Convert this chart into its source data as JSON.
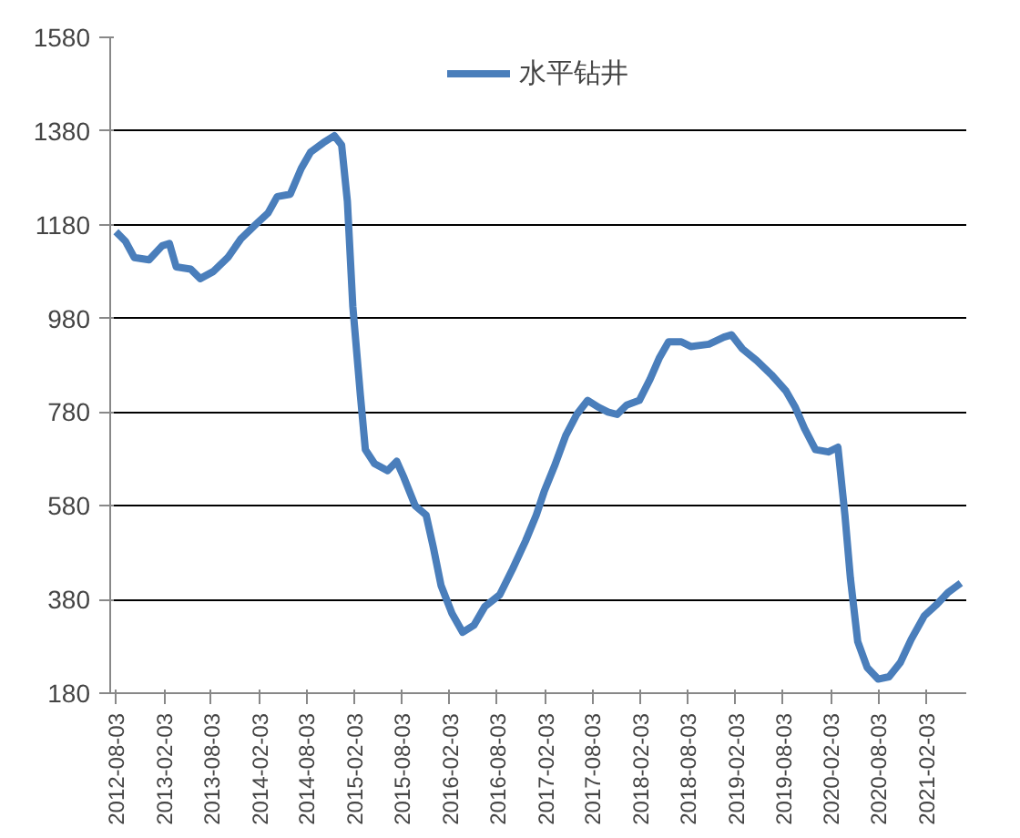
{
  "chart_data": {
    "type": "line",
    "legend": "top",
    "grid": "y",
    "marker": "none",
    "line_style": "solid",
    "xlim": [
      "2012-07-12",
      "2021-07-06"
    ],
    "ylim": [
      180,
      1580
    ],
    "yticks": [
      180,
      380,
      580,
      780,
      980,
      1180,
      1380,
      1580
    ],
    "xticks": [
      "2012-08-03",
      "2013-02-03",
      "2013-08-03",
      "2014-02-03",
      "2014-08-03",
      "2015-02-03",
      "2015-08-03",
      "2016-02-03",
      "2016-08-03",
      "2017-02-03",
      "2017-08-03",
      "2018-02-03",
      "2018-08-03",
      "2019-02-03",
      "2019-08-03",
      "2020-02-03",
      "2020-08-03",
      "2021-02-03"
    ],
    "series": [
      {
        "name": "水平钻井",
        "color": "#4a7ebb",
        "x": [
          "2012-08-03",
          "2012-09-08",
          "2012-10-12",
          "2012-12-08",
          "2013-01-27",
          "2013-02-24",
          "2013-03-22",
          "2013-05-17",
          "2013-06-22",
          "2013-08-11",
          "2013-10-06",
          "2013-11-25",
          "2014-01-20",
          "2014-03-09",
          "2014-04-13",
          "2014-06-02",
          "2014-07-14",
          "2014-08-19",
          "2014-10-07",
          "2014-11-18",
          "2014-12-16",
          "2015-01-07",
          "2015-01-28",
          "2015-02-26",
          "2015-03-17",
          "2015-04-21",
          "2015-06-10",
          "2015-07-15",
          "2015-08-12",
          "2015-09-24",
          "2015-11-05",
          "2015-12-03",
          "2016-01-01",
          "2016-02-12",
          "2016-03-24",
          "2016-05-06",
          "2016-06-17",
          "2016-08-13",
          "2016-10-01",
          "2016-11-20",
          "2016-12-31",
          "2017-01-30",
          "2017-03-11",
          "2017-04-23",
          "2017-06-04",
          "2017-07-16",
          "2017-08-28",
          "2017-10-02",
          "2017-11-06",
          "2017-12-12",
          "2018-01-30",
          "2018-03-12",
          "2018-04-16",
          "2018-05-22",
          "2018-07-10",
          "2018-08-15",
          "2018-10-24",
          "2018-12-20",
          "2019-01-18",
          "2019-03-01",
          "2019-04-25",
          "2019-06-20",
          "2019-08-15",
          "2019-09-20",
          "2019-10-25",
          "2019-12-06",
          "2020-01-25",
          "2020-03-01",
          "2020-03-28",
          "2020-04-18",
          "2020-05-16",
          "2020-06-21",
          "2020-08-02",
          "2020-09-13",
          "2020-10-26",
          "2020-12-07",
          "2021-01-26",
          "2021-03-16",
          "2021-04-27",
          "2021-06-15"
        ],
        "values": [
          1165,
          1145,
          1110,
          1105,
          1135,
          1140,
          1090,
          1085,
          1065,
          1080,
          1110,
          1150,
          1180,
          1205,
          1240,
          1245,
          1300,
          1335,
          1355,
          1370,
          1350,
          1230,
          1005,
          815,
          700,
          670,
          655,
          675,
          640,
          580,
          560,
          490,
          410,
          350,
          310,
          325,
          365,
          390,
          445,
          505,
          560,
          610,
          665,
          730,
          775,
          805,
          790,
          780,
          775,
          795,
          805,
          850,
          895,
          930,
          930,
          920,
          925,
          940,
          945,
          915,
          890,
          860,
          825,
          790,
          745,
          700,
          695,
          705,
          560,
          425,
          290,
          235,
          210,
          215,
          245,
          295,
          345,
          370,
          395,
          415
        ]
      }
    ]
  }
}
